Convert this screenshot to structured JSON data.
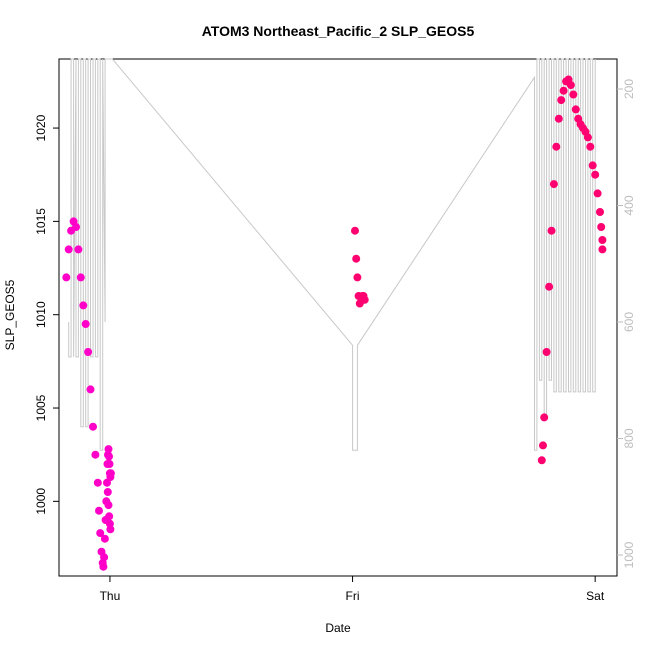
{
  "chart_data": {
    "type": "scatter",
    "title": "ATOM3 Northeast_Pacific_2 SLP_GEOS5",
    "xlabel": "Date",
    "ylabel": "SLP_GEOS5",
    "x_unit": "days (Thu = 0)",
    "xlim": [
      -0.21,
      2.09
    ],
    "ylim": [
      996.0,
      1023.7
    ],
    "x_ticks": [
      {
        "value": 0,
        "label": "Thu"
      },
      {
        "value": 1,
        "label": "Fri"
      },
      {
        "value": 2,
        "label": "Sat"
      }
    ],
    "y_ticks": [
      1000,
      1005,
      1010,
      1015,
      1020
    ],
    "y2_ticks": [
      200,
      400,
      600,
      800,
      1000
    ],
    "y2_range": [
      140,
      1010
    ],
    "grid": false,
    "colors": {
      "frame": "#000000",
      "secondary_line": "#c8c8c8",
      "secondary_axis": "#bdbdbd",
      "point_magenta": "#ff00c8",
      "point_pink": "#ff0070"
    },
    "secondary_series": {
      "name": "",
      "x": [
        -0.17,
        -0.17,
        -0.16,
        -0.16,
        -0.15,
        -0.15,
        -0.15,
        -0.14,
        -0.14,
        -0.14,
        -0.13,
        -0.13,
        -0.12,
        -0.12,
        -0.11,
        -0.11,
        -0.1,
        -0.1,
        -0.09,
        -0.09,
        -0.08,
        -0.08,
        -0.07,
        -0.07,
        -0.06,
        -0.06,
        -0.05,
        -0.05,
        -0.04,
        -0.04,
        -0.03,
        -0.03,
        -0.03,
        -0.02,
        -0.02,
        -0.02,
        -0.02,
        0.01,
        1.0,
        1.0,
        1.02,
        1.02,
        1.02,
        1.75,
        1.75,
        1.75,
        1.76,
        1.76,
        1.77,
        1.77,
        1.78,
        1.78,
        1.79,
        1.79,
        1.8,
        1.8,
        1.81,
        1.81,
        1.82,
        1.82,
        1.83,
        1.83,
        1.84,
        1.84,
        1.85,
        1.85,
        1.86,
        1.86,
        1.87,
        1.87,
        1.88,
        1.88,
        1.89,
        1.89,
        1.9,
        1.9,
        1.91,
        1.91,
        1.92,
        1.92,
        1.93,
        1.93,
        1.94,
        1.94,
        1.95,
        1.95,
        1.96,
        1.96,
        1.97,
        1.97,
        1.98,
        1.98,
        1.99,
        1.99,
        2.0,
        2.0
      ],
      "y": [
        600,
        660,
        660,
        140,
        140,
        660,
        660,
        140,
        140,
        660,
        660,
        140,
        140,
        780,
        780,
        140,
        140,
        780,
        780,
        140,
        140,
        660,
        660,
        140,
        140,
        660,
        660,
        140,
        140,
        820,
        820,
        140,
        140,
        600,
        600,
        300,
        140,
        140,
        640,
        820,
        820,
        640,
        640,
        180,
        640,
        820,
        820,
        140,
        140,
        700,
        700,
        140,
        140,
        760,
        760,
        140,
        140,
        700,
        700,
        140,
        140,
        720,
        720,
        140,
        140,
        720,
        720,
        140,
        140,
        720,
        720,
        140,
        140,
        720,
        720,
        140,
        140,
        720,
        720,
        140,
        140,
        720,
        720,
        140,
        140,
        720,
        720,
        140,
        140,
        720,
        720,
        140,
        140,
        720,
        720,
        140
      ]
    },
    "series": [
      {
        "name": "",
        "color": "#ff00c8",
        "x": [
          -0.18,
          -0.17,
          -0.16,
          -0.15,
          -0.14,
          -0.13,
          -0.12,
          -0.11,
          -0.1,
          -0.09,
          -0.08,
          -0.07,
          -0.06,
          -0.05,
          -0.045,
          -0.04,
          -0.035,
          -0.03,
          -0.027,
          -0.024,
          -0.021,
          -0.018,
          -0.015,
          -0.012,
          -0.01,
          -0.008,
          -0.006,
          -0.004,
          -0.002,
          0.0,
          0.002,
          0.004,
          -0.009,
          -0.006,
          -0.003,
          0.0,
          0.002
        ],
        "y": [
          1012.0,
          1013.5,
          1014.5,
          1015.0,
          1014.7,
          1013.5,
          1012.0,
          1010.5,
          1009.5,
          1008.0,
          1006.0,
          1004.0,
          1002.5,
          1001.0,
          999.5,
          998.3,
          997.3,
          996.7,
          996.5,
          997.0,
          998.0,
          999.0,
          1000.0,
          1001.0,
          1002.0,
          1002.5,
          1002.8,
          1002.4,
          1002.0,
          1001.5,
          1001.3,
          1001.5,
          1000.5,
          999.8,
          999.2,
          998.8,
          998.5
        ]
      },
      {
        "name": "",
        "color": "#ff0070",
        "x": [
          1.01,
          1.015,
          1.02,
          1.025,
          1.03,
          1.04,
          1.045,
          1.05
        ],
        "y": [
          1014.5,
          1013.0,
          1012.0,
          1011.0,
          1010.6,
          1011.0,
          1011.0,
          1010.8
        ]
      },
      {
        "name": "",
        "color": "#ff0070",
        "x": [
          1.78,
          1.785,
          1.79,
          1.8,
          1.81,
          1.82,
          1.83,
          1.84,
          1.85,
          1.86,
          1.87,
          1.88,
          1.89,
          1.9,
          1.91,
          1.92,
          1.93,
          1.94,
          1.95,
          1.96,
          1.97,
          1.98,
          1.99,
          2.0,
          2.01,
          2.02,
          2.025,
          2.03,
          2.03
        ],
        "y": [
          1002.2,
          1003.0,
          1004.5,
          1008.0,
          1011.5,
          1014.5,
          1017.0,
          1019.0,
          1020.5,
          1021.5,
          1022.0,
          1022.5,
          1022.6,
          1022.3,
          1021.8,
          1021.0,
          1020.5,
          1020.2,
          1020.0,
          1019.8,
          1019.5,
          1019.0,
          1018.0,
          1017.5,
          1016.5,
          1015.5,
          1014.7,
          1014.0,
          1013.5
        ]
      }
    ]
  }
}
